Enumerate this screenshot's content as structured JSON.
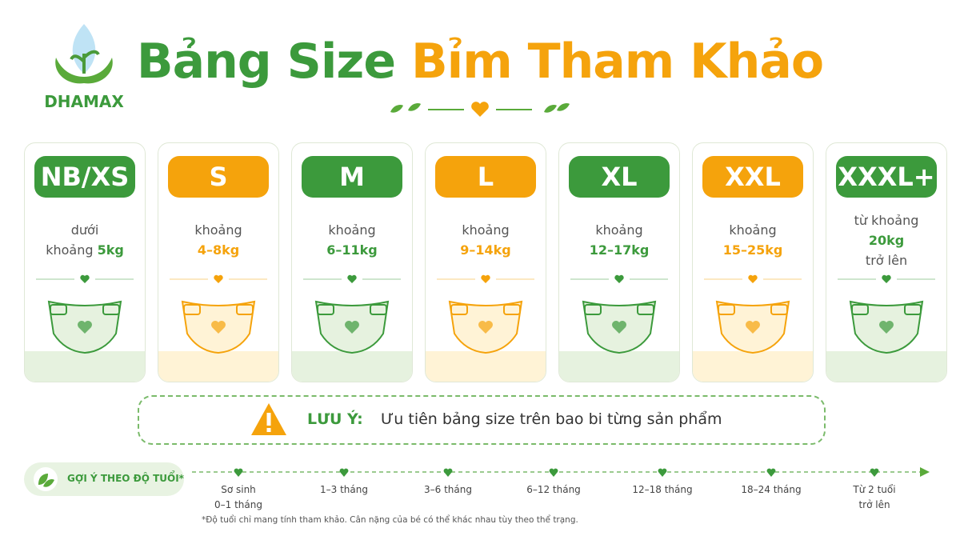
{
  "brand": "DHAMAX",
  "header": {
    "title_a": "Bảng Size",
    "title_b": "Bỉm Tham Khảo"
  },
  "cards": [
    {
      "size": "NB/XS",
      "color": "#3c9a3c",
      "lines": [
        "dưới"
      ],
      "weight_prefix": "khoảng",
      "weight": "5kg"
    },
    {
      "size": "S",
      "color": "#f5a30c",
      "lines": [
        "khoảng"
      ],
      "weight": "4–8kg"
    },
    {
      "size": "M",
      "color": "#3c9a3c",
      "lines": [
        "khoảng"
      ],
      "weight": "6–11kg"
    },
    {
      "size": "L",
      "color": "#f5a30c",
      "lines": [
        "khoảng"
      ],
      "weight": "9–14kg"
    },
    {
      "size": "XL",
      "color": "#3c9a3c",
      "lines": [
        "khoảng"
      ],
      "weight": "12–17kg"
    },
    {
      "size": "XXL",
      "color": "#f5a30c",
      "lines": [
        "khoảng"
      ],
      "weight": "15–25kg"
    },
    {
      "size": "XXXL+",
      "color": "#3c9a3c",
      "lines": [
        "từ khoảng"
      ],
      "weight": "20kg",
      "after": "trở lên"
    }
  ],
  "note": {
    "label": "LƯU Ý:",
    "text": "Ưu tiên bảng size trên bao bi từng sản phẩm"
  },
  "timeline": {
    "label": "GỢI Ý THEO ĐỘ TUỔI*",
    "points": [
      [
        "Sơ sinh",
        "0–1 tháng"
      ],
      [
        "1–3 tháng"
      ],
      [
        "3–6 tháng"
      ],
      [
        "6–12 tháng"
      ],
      [
        "12–18 tháng"
      ],
      [
        "18–24 tháng"
      ],
      [
        "Từ 2 tuổi",
        "trở lên"
      ]
    ]
  },
  "footnote": "*Độ tuổi chỉ mang tính tham khảo. Cân nặng của bé có thể khác nhau tùy theo thể trạng."
}
